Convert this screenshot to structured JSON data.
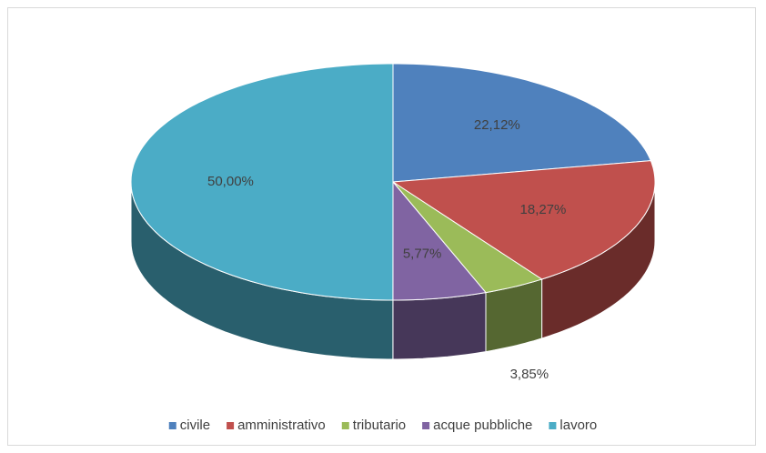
{
  "chart_data": {
    "type": "pie",
    "categories": [
      "civile",
      "amministrativo",
      "tributario",
      "acque pubbliche",
      "lavoro"
    ],
    "values": [
      22.12,
      18.27,
      3.85,
      5.77,
      50.0
    ],
    "value_labels": [
      "22,12%",
      "18,27%",
      "3,85%",
      "5,77%",
      "50,00%"
    ],
    "colors": [
      "#4f81bd",
      "#c0504d",
      "#9bbb59",
      "#8064a2",
      "#4bacc6"
    ],
    "legend": "bottom"
  }
}
